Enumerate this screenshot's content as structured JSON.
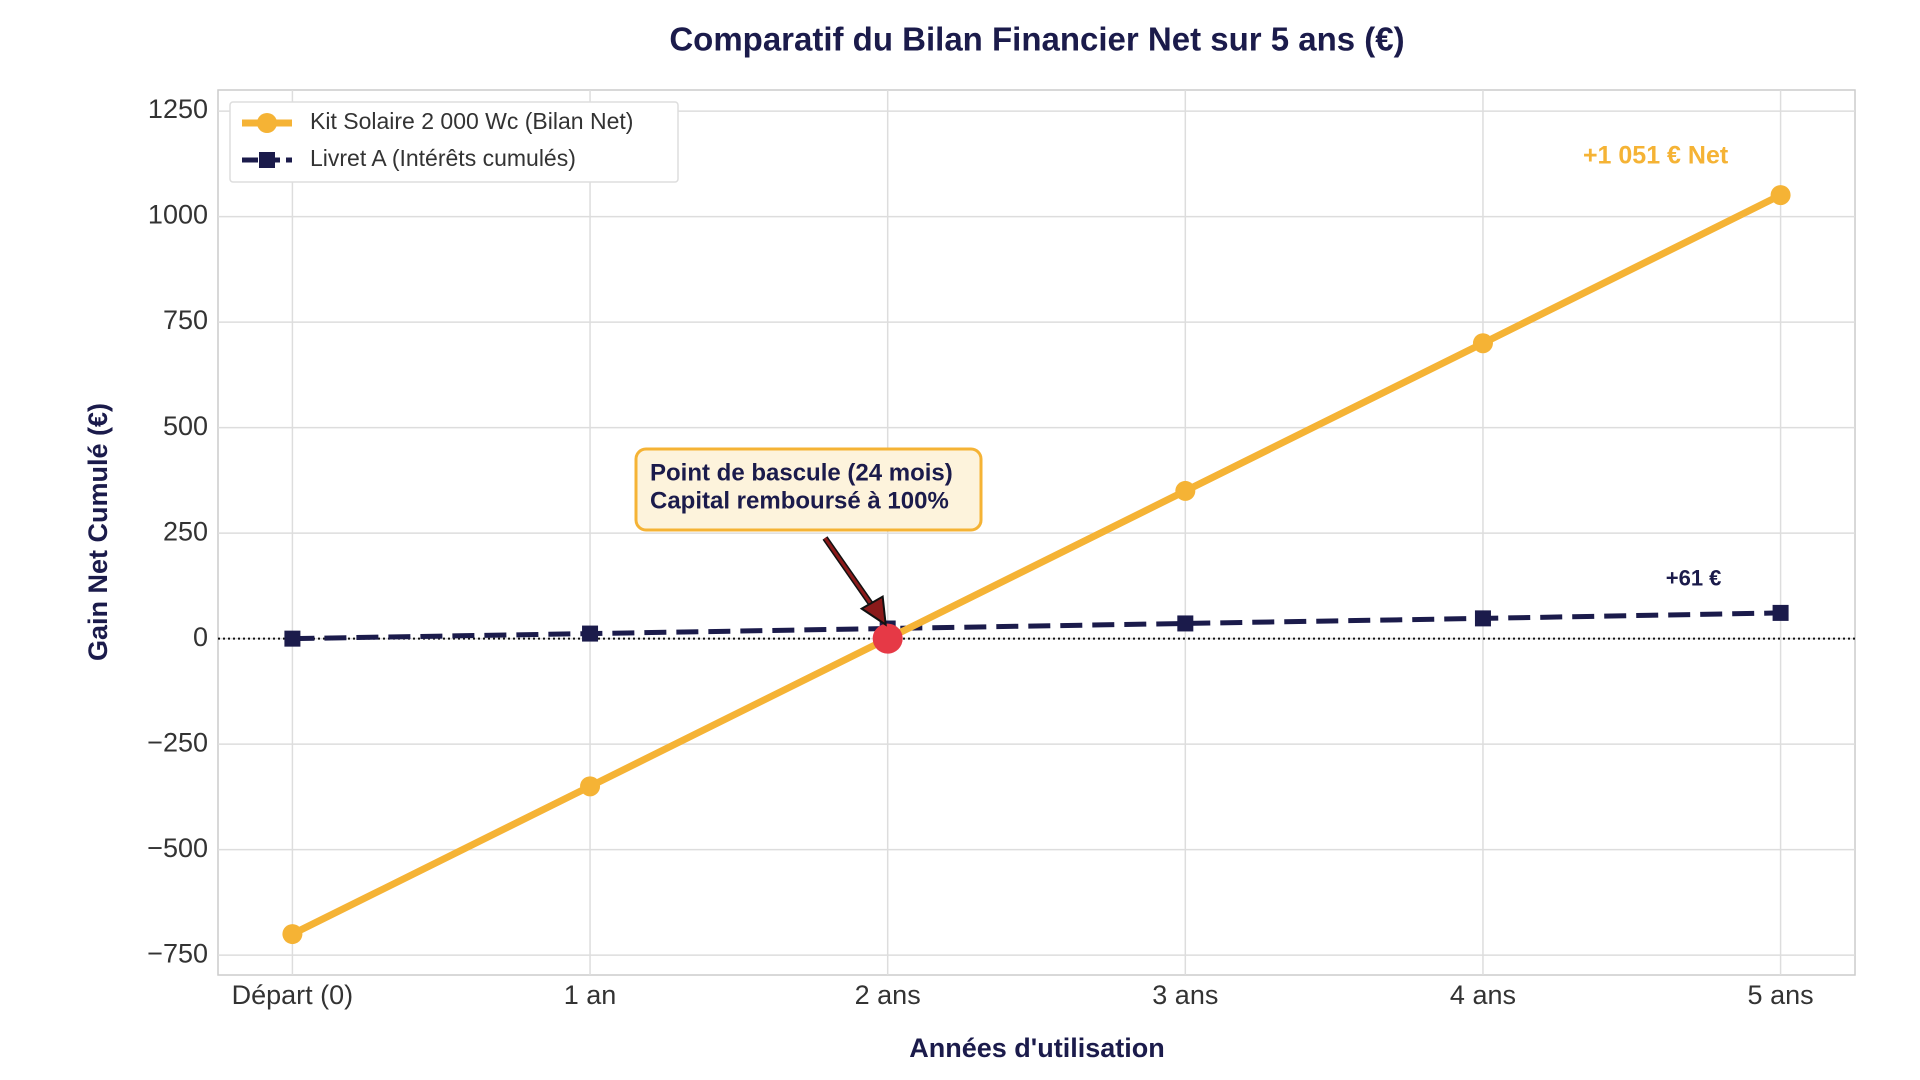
{
  "chart_data": {
    "type": "line",
    "title": "Comparatif du Bilan Financier Net sur 5 ans (€)",
    "x_label": "Années d'utilisation",
    "y_label": "Gain Net Cumulé (€)",
    "categories": [
      "Départ (0)",
      "1 an",
      "2 ans",
      "3 ans",
      "4 ans",
      "5 ans"
    ],
    "series": [
      {
        "name": "Kit Solaire 2 000 Wc (Bilan Net)",
        "color": "#f5b335",
        "marker": "circle",
        "dashed": false,
        "values": [
          -700,
          -350,
          0,
          350,
          700,
          1051
        ]
      },
      {
        "name": "Livret A (Intérêts cumulés)",
        "color": "#1b1b4b",
        "marker": "square",
        "dashed": true,
        "values": [
          0,
          12,
          24,
          36,
          48,
          61
        ]
      }
    ],
    "ylim": [
      -797,
      1300
    ],
    "yticks": [
      {
        "value": -750,
        "label": "−750"
      },
      {
        "value": -500,
        "label": "−500"
      },
      {
        "value": -250,
        "label": "−250"
      },
      0,
      250,
      500,
      750,
      1000,
      1250
    ],
    "grid": true,
    "zero_line": true,
    "legend": "upper-left",
    "highlight_color": "#e63946",
    "annotations": [
      {
        "text": "+1 051 € Net",
        "color": "#f5b335"
      },
      {
        "text": "+61 €",
        "color": "#1b1b4b"
      },
      {
        "text_lines": [
          "Point de bascule (24 mois)",
          "Capital remboursé à 100%"
        ],
        "color": "#1b1b4b"
      }
    ]
  }
}
